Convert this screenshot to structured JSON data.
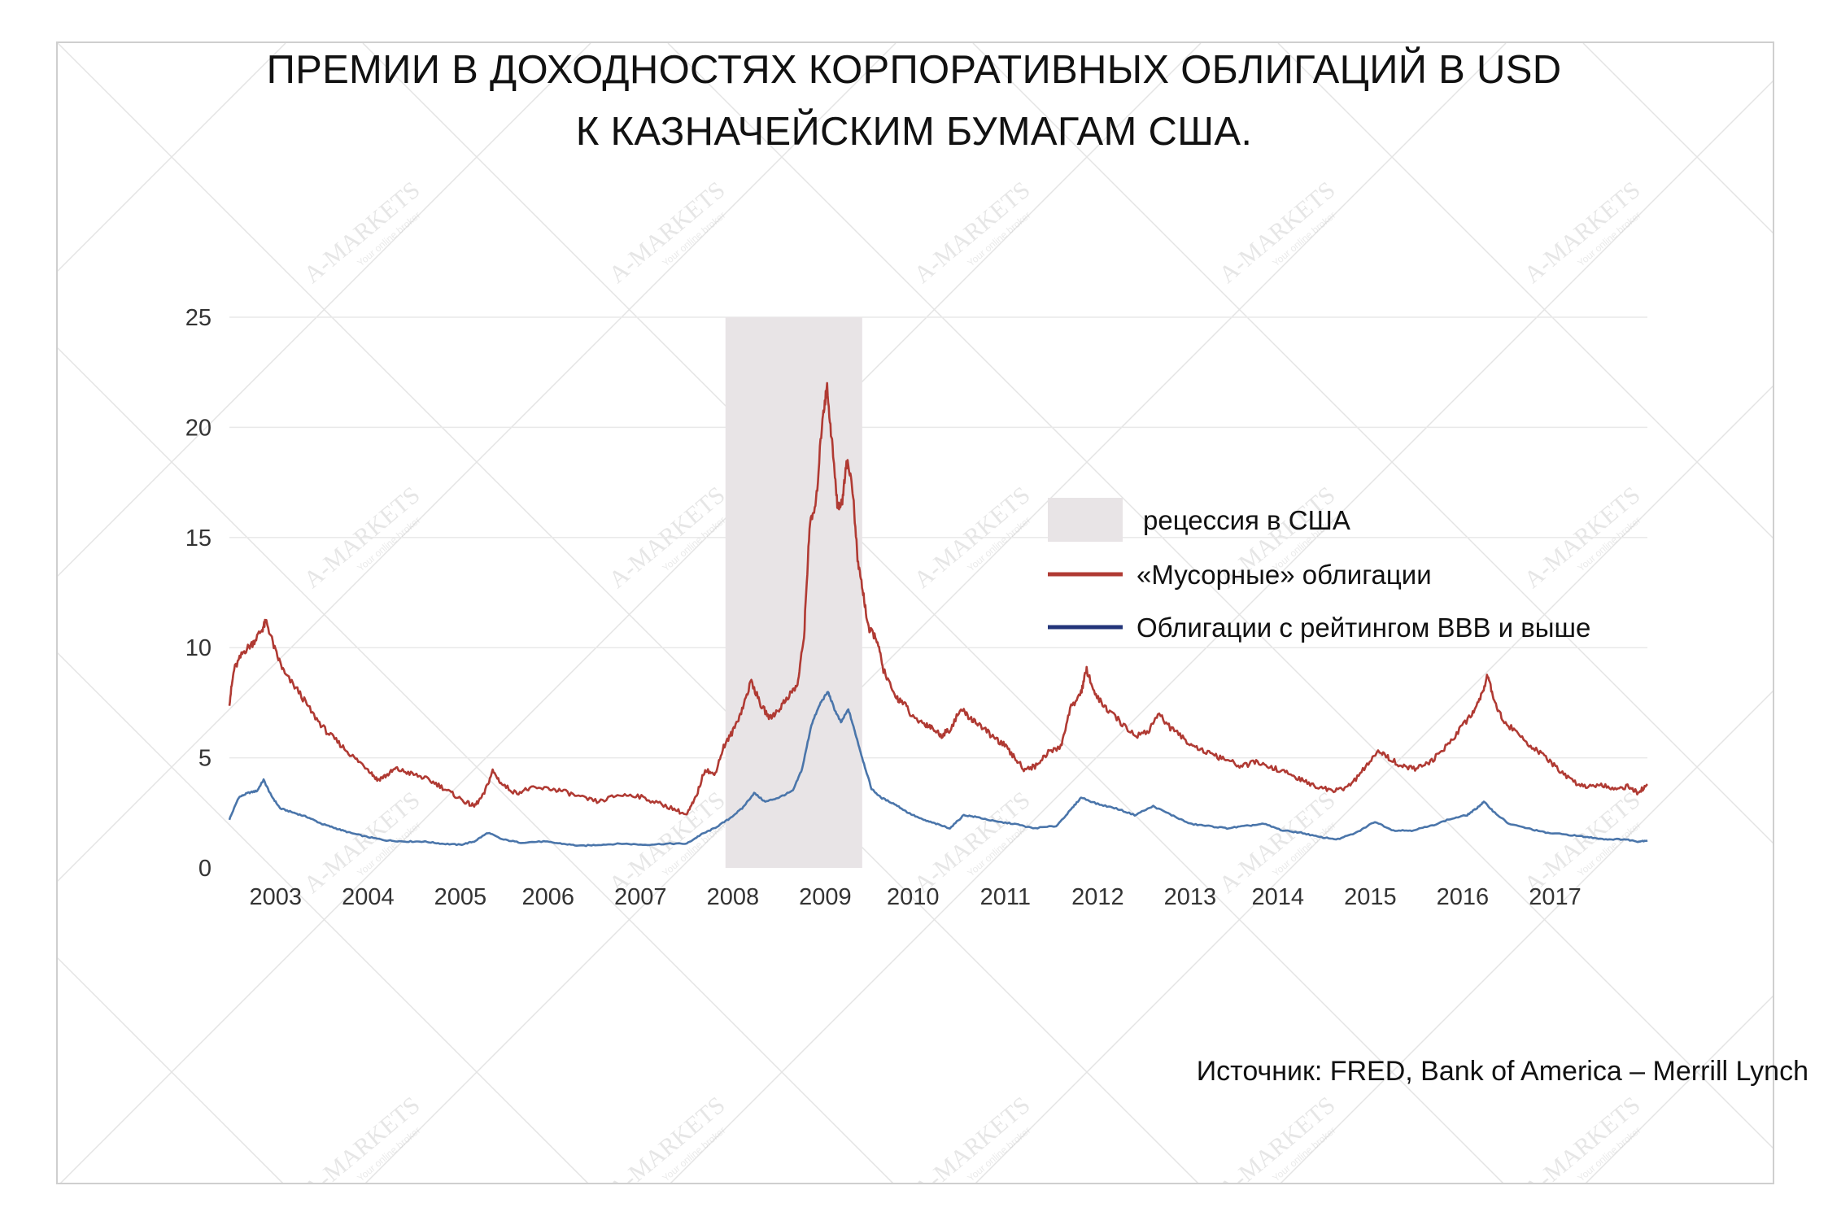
{
  "title": {
    "line1": "ПРЕМИИ В ДОХОДНОСТЯХ КОРПОРАТИВНЫХ ОБЛИГАЦИЙ В USD",
    "line2": "К КАЗНАЧЕЙСКИМ БУМАГАМ США."
  },
  "source": "Источник: FRED, Bank of America – Merrill Lynch",
  "watermark": {
    "brand": "A-MARKETS",
    "tagline": "Your online broker"
  },
  "colors": {
    "junk": "#b03a33",
    "bbb": "#4a75aa",
    "recession": "#e8e4e6",
    "grid": "#e9e9e9",
    "legend_bbb": "#23357a"
  },
  "chart_data": {
    "type": "line",
    "title": "ПРЕМИИ В ДОХОДНОСТЯХ КОРПОРАТИВНЫХ ОБЛИГАЦИЙ В USD К КАЗНАЧЕЙСКИМ БУМАГАМ США.",
    "xlabel": "",
    "ylabel": "",
    "xlim": [
      2002.5,
      2017.85
    ],
    "ylim": [
      0,
      25
    ],
    "yticks": [
      0,
      5,
      10,
      15,
      20,
      25
    ],
    "xtick_labels": [
      {
        "label": "2003",
        "x": 2003.0
      },
      {
        "label": "2004",
        "x": 2004.0
      },
      {
        "label": "2005",
        "x": 2005.0
      },
      {
        "label": "2006",
        "x": 2005.95
      },
      {
        "label": "2007",
        "x": 2006.95
      },
      {
        "label": "2008",
        "x": 2007.95
      },
      {
        "label": "2009",
        "x": 2008.95
      },
      {
        "label": "2010",
        "x": 2009.9
      },
      {
        "label": "2011",
        "x": 2010.9
      },
      {
        "label": "2012",
        "x": 2011.9
      },
      {
        "label": "2013",
        "x": 2012.9
      },
      {
        "label": "2014",
        "x": 2013.85
      },
      {
        "label": "2015",
        "x": 2014.85
      },
      {
        "label": "2016",
        "x": 2015.85
      },
      {
        "label": "2017",
        "x": 2016.85
      }
    ],
    "grid": true,
    "legend_position": "right",
    "recession": {
      "name": "рецессия в США",
      "start": 2007.87,
      "end": 2009.35
    },
    "series": [
      {
        "name": "«Мусорные» облигации",
        "color": "#b03a33",
        "points": [
          [
            2002.5,
            7.5
          ],
          [
            2002.55,
            9.0
          ],
          [
            2002.65,
            9.8
          ],
          [
            2002.75,
            10.2
          ],
          [
            2002.85,
            10.8
          ],
          [
            2002.9,
            11.2
          ],
          [
            2003.0,
            9.8
          ],
          [
            2003.1,
            8.8
          ],
          [
            2003.25,
            8.0
          ],
          [
            2003.4,
            7.0
          ],
          [
            2003.55,
            6.2
          ],
          [
            2003.7,
            5.6
          ],
          [
            2003.85,
            5.0
          ],
          [
            2004.0,
            4.5
          ],
          [
            2004.1,
            4.0
          ],
          [
            2004.2,
            4.2
          ],
          [
            2004.3,
            4.5
          ],
          [
            2004.45,
            4.3
          ],
          [
            2004.6,
            4.1
          ],
          [
            2004.75,
            3.8
          ],
          [
            2004.9,
            3.4
          ],
          [
            2005.05,
            3.0
          ],
          [
            2005.15,
            2.8
          ],
          [
            2005.25,
            3.3
          ],
          [
            2005.35,
            4.4
          ],
          [
            2005.45,
            3.8
          ],
          [
            2005.6,
            3.4
          ],
          [
            2005.75,
            3.6
          ],
          [
            2005.95,
            3.6
          ],
          [
            2006.1,
            3.5
          ],
          [
            2006.3,
            3.2
          ],
          [
            2006.5,
            3.0
          ],
          [
            2006.7,
            3.3
          ],
          [
            2006.9,
            3.3
          ],
          [
            2007.1,
            3.0
          ],
          [
            2007.3,
            2.7
          ],
          [
            2007.45,
            2.4
          ],
          [
            2007.55,
            3.2
          ],
          [
            2007.65,
            4.5
          ],
          [
            2007.75,
            4.2
          ],
          [
            2007.85,
            5.5
          ],
          [
            2007.95,
            6.2
          ],
          [
            2008.05,
            7.2
          ],
          [
            2008.15,
            8.5
          ],
          [
            2008.25,
            7.4
          ],
          [
            2008.35,
            6.8
          ],
          [
            2008.45,
            7.2
          ],
          [
            2008.55,
            7.8
          ],
          [
            2008.65,
            8.3
          ],
          [
            2008.72,
            10.5
          ],
          [
            2008.78,
            15.5
          ],
          [
            2008.85,
            16.5
          ],
          [
            2008.92,
            20.5
          ],
          [
            2008.97,
            21.8
          ],
          [
            2009.03,
            19.0
          ],
          [
            2009.08,
            16.5
          ],
          [
            2009.13,
            16.5
          ],
          [
            2009.18,
            18.5
          ],
          [
            2009.24,
            17.5
          ],
          [
            2009.3,
            14.0
          ],
          [
            2009.36,
            12.5
          ],
          [
            2009.42,
            10.8
          ],
          [
            2009.5,
            10.5
          ],
          [
            2009.58,
            9.0
          ],
          [
            2009.7,
            7.8
          ],
          [
            2009.8,
            7.5
          ],
          [
            2009.9,
            6.8
          ],
          [
            2010.0,
            6.6
          ],
          [
            2010.1,
            6.4
          ],
          [
            2010.2,
            6.0
          ],
          [
            2010.3,
            6.3
          ],
          [
            2010.42,
            7.2
          ],
          [
            2010.52,
            6.8
          ],
          [
            2010.62,
            6.5
          ],
          [
            2010.75,
            6.0
          ],
          [
            2010.88,
            5.6
          ],
          [
            2011.0,
            5.0
          ],
          [
            2011.1,
            4.5
          ],
          [
            2011.22,
            4.6
          ],
          [
            2011.35,
            5.2
          ],
          [
            2011.5,
            5.5
          ],
          [
            2011.6,
            7.2
          ],
          [
            2011.72,
            8.0
          ],
          [
            2011.78,
            9.0
          ],
          [
            2011.88,
            7.8
          ],
          [
            2012.0,
            7.2
          ],
          [
            2012.15,
            6.6
          ],
          [
            2012.3,
            6.0
          ],
          [
            2012.45,
            6.2
          ],
          [
            2012.55,
            7.0
          ],
          [
            2012.7,
            6.3
          ],
          [
            2012.85,
            5.8
          ],
          [
            2013.0,
            5.4
          ],
          [
            2013.15,
            5.1
          ],
          [
            2013.3,
            4.9
          ],
          [
            2013.45,
            4.6
          ],
          [
            2013.6,
            4.8
          ],
          [
            2013.75,
            4.6
          ],
          [
            2013.9,
            4.4
          ],
          [
            2014.05,
            4.1
          ],
          [
            2014.2,
            3.8
          ],
          [
            2014.35,
            3.6
          ],
          [
            2014.5,
            3.5
          ],
          [
            2014.65,
            3.8
          ],
          [
            2014.8,
            4.6
          ],
          [
            2014.95,
            5.3
          ],
          [
            2015.05,
            5.0
          ],
          [
            2015.2,
            4.6
          ],
          [
            2015.35,
            4.5
          ],
          [
            2015.5,
            4.8
          ],
          [
            2015.65,
            5.4
          ],
          [
            2015.8,
            6.2
          ],
          [
            2015.95,
            7.0
          ],
          [
            2016.05,
            7.8
          ],
          [
            2016.12,
            8.8
          ],
          [
            2016.2,
            7.5
          ],
          [
            2016.3,
            6.6
          ],
          [
            2016.45,
            6.1
          ],
          [
            2016.6,
            5.5
          ],
          [
            2016.75,
            5.0
          ],
          [
            2016.9,
            4.4
          ],
          [
            2017.05,
            3.9
          ],
          [
            2017.2,
            3.7
          ],
          [
            2017.35,
            3.8
          ],
          [
            2017.5,
            3.6
          ],
          [
            2017.65,
            3.7
          ],
          [
            2017.75,
            3.4
          ],
          [
            2017.85,
            3.8
          ]
        ]
      },
      {
        "name": "Облигации с рейтингом BBB и выше",
        "color": "#4a75aa",
        "points": [
          [
            2002.5,
            2.2
          ],
          [
            2002.6,
            3.2
          ],
          [
            2002.7,
            3.4
          ],
          [
            2002.8,
            3.5
          ],
          [
            2002.87,
            4.0
          ],
          [
            2002.95,
            3.3
          ],
          [
            2003.05,
            2.7
          ],
          [
            2003.2,
            2.5
          ],
          [
            2003.35,
            2.3
          ],
          [
            2003.5,
            2.0
          ],
          [
            2003.65,
            1.8
          ],
          [
            2003.8,
            1.6
          ],
          [
            2004.0,
            1.4
          ],
          [
            2004.2,
            1.25
          ],
          [
            2004.4,
            1.2
          ],
          [
            2004.6,
            1.2
          ],
          [
            2004.8,
            1.1
          ],
          [
            2005.0,
            1.05
          ],
          [
            2005.15,
            1.2
          ],
          [
            2005.3,
            1.6
          ],
          [
            2005.45,
            1.3
          ],
          [
            2005.65,
            1.15
          ],
          [
            2005.9,
            1.2
          ],
          [
            2006.1,
            1.1
          ],
          [
            2006.3,
            1.0
          ],
          [
            2006.5,
            1.05
          ],
          [
            2006.75,
            1.1
          ],
          [
            2007.0,
            1.05
          ],
          [
            2007.25,
            1.1
          ],
          [
            2007.45,
            1.1
          ],
          [
            2007.6,
            1.5
          ],
          [
            2007.75,
            1.8
          ],
          [
            2007.9,
            2.2
          ],
          [
            2008.05,
            2.7
          ],
          [
            2008.18,
            3.4
          ],
          [
            2008.3,
            3.0
          ],
          [
            2008.45,
            3.2
          ],
          [
            2008.6,
            3.5
          ],
          [
            2008.7,
            4.5
          ],
          [
            2008.8,
            6.5
          ],
          [
            2008.9,
            7.5
          ],
          [
            2008.98,
            8.0
          ],
          [
            2009.05,
            7.2
          ],
          [
            2009.12,
            6.6
          ],
          [
            2009.2,
            7.2
          ],
          [
            2009.27,
            6.2
          ],
          [
            2009.35,
            5.0
          ],
          [
            2009.45,
            3.6
          ],
          [
            2009.55,
            3.2
          ],
          [
            2009.7,
            2.9
          ],
          [
            2009.85,
            2.5
          ],
          [
            2010.0,
            2.2
          ],
          [
            2010.15,
            2.0
          ],
          [
            2010.3,
            1.8
          ],
          [
            2010.45,
            2.4
          ],
          [
            2010.6,
            2.3
          ],
          [
            2010.8,
            2.1
          ],
          [
            2011.0,
            2.0
          ],
          [
            2011.2,
            1.8
          ],
          [
            2011.45,
            1.9
          ],
          [
            2011.6,
            2.6
          ],
          [
            2011.72,
            3.2
          ],
          [
            2011.9,
            2.9
          ],
          [
            2012.1,
            2.7
          ],
          [
            2012.3,
            2.4
          ],
          [
            2012.5,
            2.8
          ],
          [
            2012.7,
            2.4
          ],
          [
            2012.9,
            2.0
          ],
          [
            2013.1,
            1.9
          ],
          [
            2013.3,
            1.8
          ],
          [
            2013.5,
            1.9
          ],
          [
            2013.7,
            2.0
          ],
          [
            2013.9,
            1.7
          ],
          [
            2014.1,
            1.6
          ],
          [
            2014.3,
            1.4
          ],
          [
            2014.5,
            1.3
          ],
          [
            2014.7,
            1.6
          ],
          [
            2014.9,
            2.1
          ],
          [
            2015.1,
            1.7
          ],
          [
            2015.3,
            1.7
          ],
          [
            2015.5,
            1.9
          ],
          [
            2015.7,
            2.2
          ],
          [
            2015.9,
            2.4
          ],
          [
            2016.0,
            2.7
          ],
          [
            2016.08,
            3.0
          ],
          [
            2016.2,
            2.5
          ],
          [
            2016.35,
            2.0
          ],
          [
            2016.55,
            1.8
          ],
          [
            2016.75,
            1.6
          ],
          [
            2017.0,
            1.5
          ],
          [
            2017.2,
            1.4
          ],
          [
            2017.4,
            1.3
          ],
          [
            2017.6,
            1.3
          ],
          [
            2017.75,
            1.2
          ],
          [
            2017.85,
            1.25
          ]
        ]
      }
    ]
  }
}
